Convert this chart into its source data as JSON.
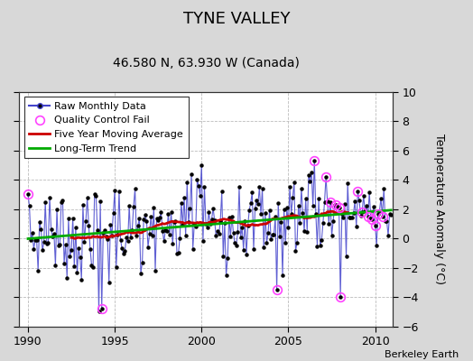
{
  "title": "TYNE VALLEY",
  "subtitle": "46.580 N, 63.930 W (Canada)",
  "ylabel": "Temperature Anomaly (°C)",
  "credit": "Berkeley Earth",
  "xlim": [
    1989.5,
    2011.0
  ],
  "ylim": [
    -6,
    10
  ],
  "yticks": [
    -6,
    -4,
    -2,
    0,
    2,
    4,
    6,
    8,
    10
  ],
  "xticks": [
    1990,
    1995,
    2000,
    2005,
    2010
  ],
  "raw_color": "#4444cc",
  "dot_color": "#000000",
  "qc_color": "#ff44ff",
  "ma_color": "#cc0000",
  "trend_color": "#00aa00",
  "bg_color": "#d8d8d8",
  "plot_bg": "#ffffff",
  "grid_color": "#bbbbbb",
  "title_fontsize": 13,
  "subtitle_fontsize": 10,
  "tick_fontsize": 9,
  "legend_fontsize": 8
}
